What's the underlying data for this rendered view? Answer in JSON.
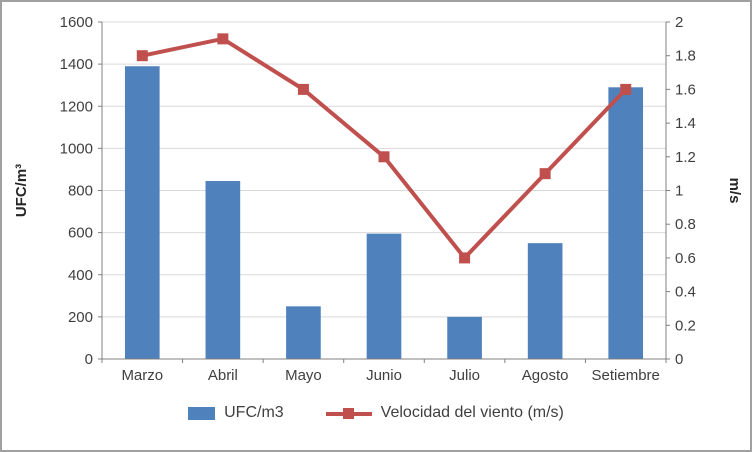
{
  "chart_data": {
    "type": "combo",
    "title": "",
    "categories": [
      "Marzo",
      "Abril",
      "Mayo",
      "Junio",
      "Julio",
      "Agosto",
      "Setiembre"
    ],
    "series": [
      {
        "name": "UFC/m3",
        "type": "bar",
        "axis": "left",
        "color": "#4f81bd",
        "values": [
          1390,
          845,
          250,
          595,
          200,
          550,
          1290
        ]
      },
      {
        "name": "Velocidad del viento (m/s)",
        "type": "line",
        "axis": "right",
        "color": "#c0504d",
        "marker": "square",
        "values": [
          1.8,
          1.9,
          1.6,
          1.2,
          0.6,
          1.1,
          1.6
        ]
      }
    ],
    "left_axis": {
      "label": "UFC/m³",
      "min": 0,
      "max": 1600,
      "step": 200
    },
    "right_axis": {
      "label": "m/s",
      "min": 0,
      "max": 2,
      "step": 0.2
    },
    "grid": "horizontal",
    "legend_position": "bottom",
    "colors": {
      "grid": "#d9d9d9",
      "axis": "#808080",
      "text": "#3f3f3f"
    }
  }
}
